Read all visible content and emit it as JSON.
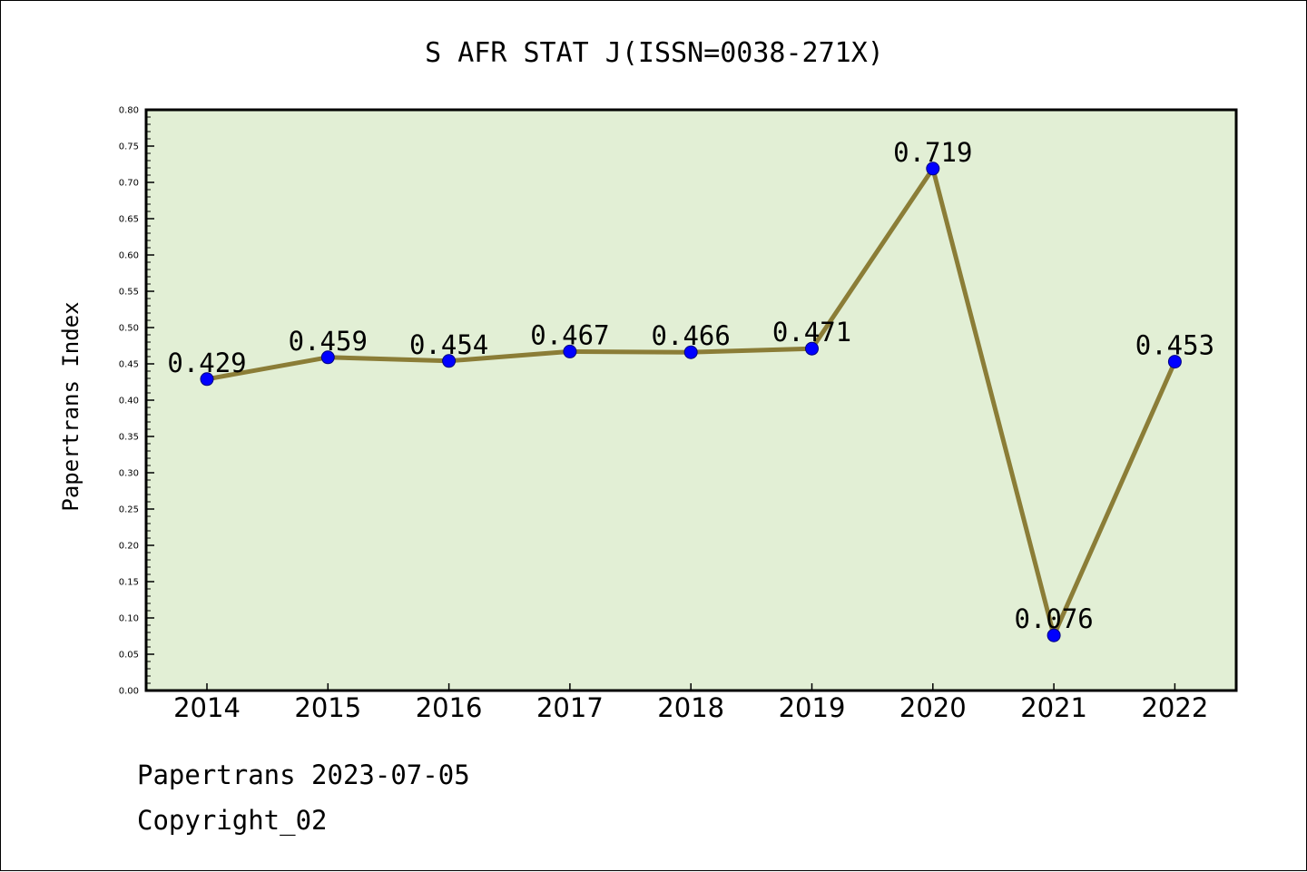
{
  "colors": {
    "plot_background": "#e2efd5",
    "line": "#8b7d37",
    "marker": "#0000ff",
    "axis": "#000000"
  },
  "footer": {
    "date_line": "Papertrans 2023-07-05",
    "copyright_line": "Copyright_02"
  },
  "chart_data": {
    "type": "line",
    "title": "S AFR STAT J(ISSN=0038-271X)",
    "xlabel": "",
    "ylabel": "Papertrans Index",
    "categories": [
      "2014",
      "2015",
      "2016",
      "2017",
      "2018",
      "2019",
      "2020",
      "2021",
      "2022"
    ],
    "series": [
      {
        "values": [
          0.429,
          0.459,
          0.454,
          0.467,
          0.466,
          0.471,
          0.719,
          0.076,
          0.453
        ],
        "data_labels": [
          "0.429",
          "0.459",
          "0.454",
          "0.467",
          "0.466",
          "0.471",
          "0.719",
          "0.076",
          "0.453"
        ]
      }
    ],
    "ylim": [
      0,
      0.8
    ],
    "yticks": [
      "0.00",
      "0.05",
      "0.10",
      "0.15",
      "0.20",
      "0.25",
      "0.30",
      "0.35",
      "0.40",
      "0.45",
      "0.50",
      "0.55",
      "0.60",
      "0.65",
      "0.70",
      "0.75",
      "0.80"
    ],
    "grid": false,
    "legend": "none"
  }
}
